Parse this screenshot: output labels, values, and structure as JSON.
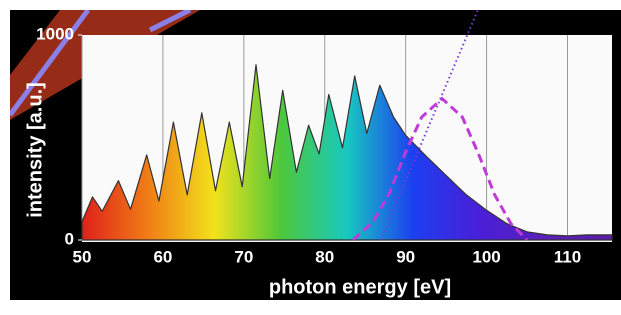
{
  "chart_data": {
    "type": "line",
    "xlabel": "photon energy [eV]",
    "ylabel": "intensity [a.u.]",
    "xlim": [
      50,
      115.5
    ],
    "ylim": [
      0,
      1000
    ],
    "xticks": [
      50,
      60,
      70,
      80,
      90,
      100,
      110
    ],
    "yticks": [
      0,
      1000
    ],
    "grid": true,
    "series": [
      {
        "style": "area",
        "color": "#333333",
        "gradient": [
          "#e0201a",
          "#f07d16",
          "#f2e21b",
          "#4ec83a",
          "#18c8c0",
          "#1c3ff0",
          "#4a1fd8",
          "#5a20b8",
          "#5a1ca8"
        ],
        "x": [
          50,
          51.3,
          52.5,
          54.5,
          56,
          58,
          59.5,
          61.3,
          63,
          64.8,
          66.5,
          68.2,
          69.8,
          71.5,
          73.2,
          74.8,
          76.5,
          78,
          79.3,
          80.5,
          82.2,
          83.7,
          85.2,
          86.8,
          88.5,
          90,
          92.5,
          95,
          97.5,
          100,
          102.5,
          105,
          107.5,
          110,
          112.5,
          115.5
        ],
        "values": [
          90,
          210,
          140,
          290,
          150,
          415,
          190,
          575,
          220,
          620,
          240,
          575,
          260,
          855,
          300,
          730,
          330,
          560,
          420,
          710,
          450,
          800,
          520,
          755,
          600,
          510,
          410,
          315,
          220,
          145,
          80,
          40,
          25,
          20,
          25,
          25
        ]
      },
      {
        "style": "dashed",
        "color": "#c03ad8",
        "x": [
          83.5,
          86,
          88,
          90,
          92,
          94.5,
          97,
          99,
          101,
          103,
          105
        ],
        "values": [
          0,
          90,
          230,
          430,
          600,
          690,
          600,
          420,
          220,
          80,
          0
        ]
      },
      {
        "style": "dotted",
        "color": "#7a3ad8",
        "x": [
          86.9,
          98.9
        ],
        "values": [
          0,
          1120
        ]
      }
    ]
  }
}
